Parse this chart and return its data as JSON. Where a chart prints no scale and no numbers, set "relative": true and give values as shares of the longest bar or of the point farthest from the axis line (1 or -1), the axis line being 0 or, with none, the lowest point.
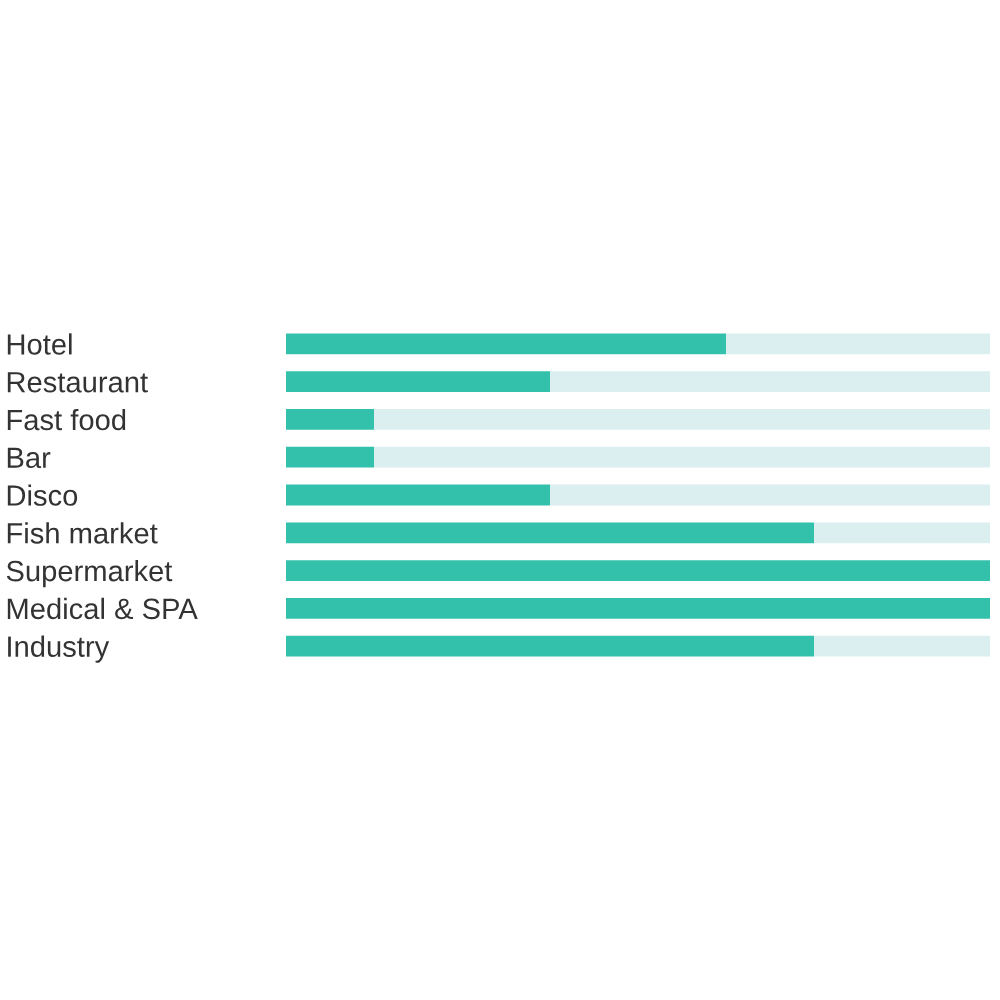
{
  "chart_data": {
    "type": "bar",
    "orientation": "horizontal",
    "stacked": true,
    "relative": true,
    "categories": [
      "Hotel",
      "Restaurant",
      "Fast food",
      "Bar",
      "Disco",
      "Fish market",
      "Supermarket",
      "Medical & SPA",
      "Industry"
    ],
    "series": [
      {
        "color": "#33c1ac",
        "values": [
          0.625,
          0.375,
          0.125,
          0.125,
          0.375,
          0.75,
          1,
          1,
          0.75
        ]
      },
      {
        "color": "#dbeff0",
        "values": [
          0.375,
          0.625,
          0.875,
          0.875,
          0.625,
          0.25,
          0,
          0,
          0.25
        ]
      }
    ]
  }
}
